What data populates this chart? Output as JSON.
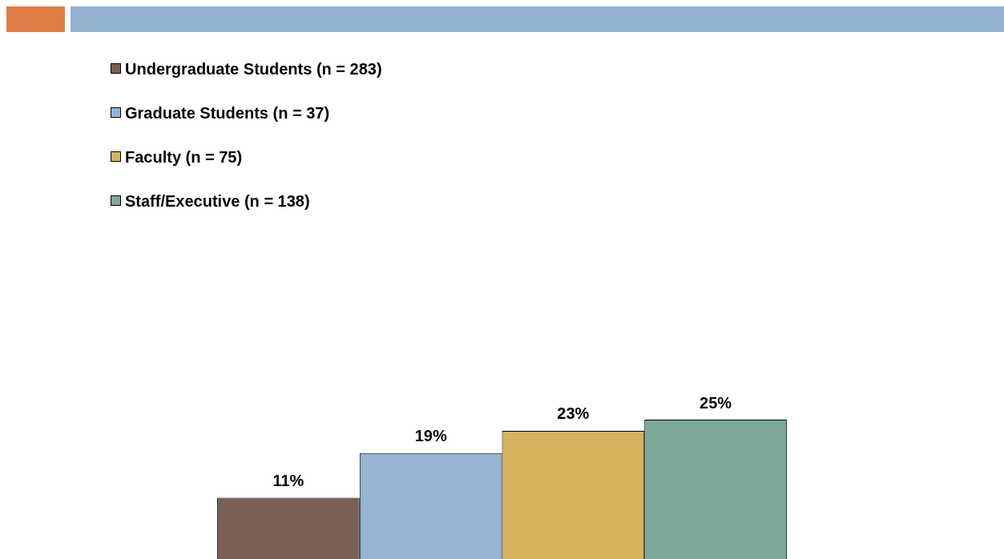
{
  "chart_data": {
    "type": "bar",
    "categories": [
      null
    ],
    "legend": "top left",
    "series": [
      {
        "name": "Undergraduate Students (n = 283)",
        "color": "#7a5f55",
        "values": [
          11
        ],
        "value_labels": [
          "11%"
        ]
      },
      {
        "name": "Graduate Students (n = 37)",
        "color": "#95b5d3",
        "values": [
          19
        ],
        "value_labels": [
          "19%"
        ]
      },
      {
        "name": "Faculty (n = 75)",
        "color": "#d8b15e",
        "values": [
          23
        ],
        "value_labels": [
          "23%"
        ]
      },
      {
        "name": "Staff/Executive (n = 138)",
        "color": "#7ca89c",
        "values": [
          25
        ],
        "value_labels": [
          "25%"
        ]
      }
    ]
  }
}
